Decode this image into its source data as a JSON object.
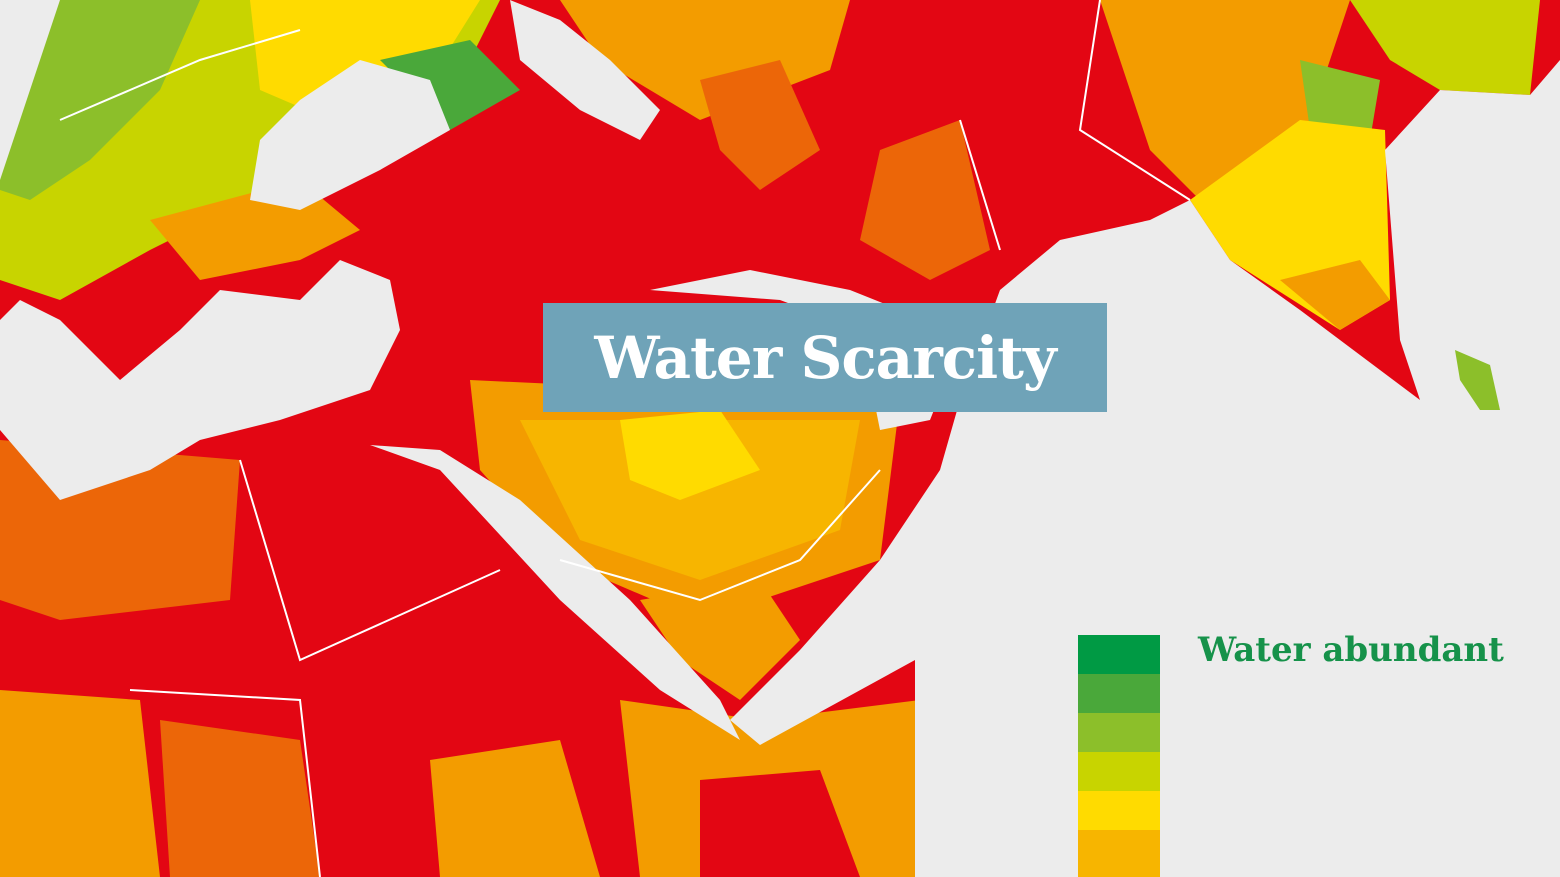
{
  "title": "Water Scarcity",
  "legend": {
    "top_label": "Water abundant"
  }
}
